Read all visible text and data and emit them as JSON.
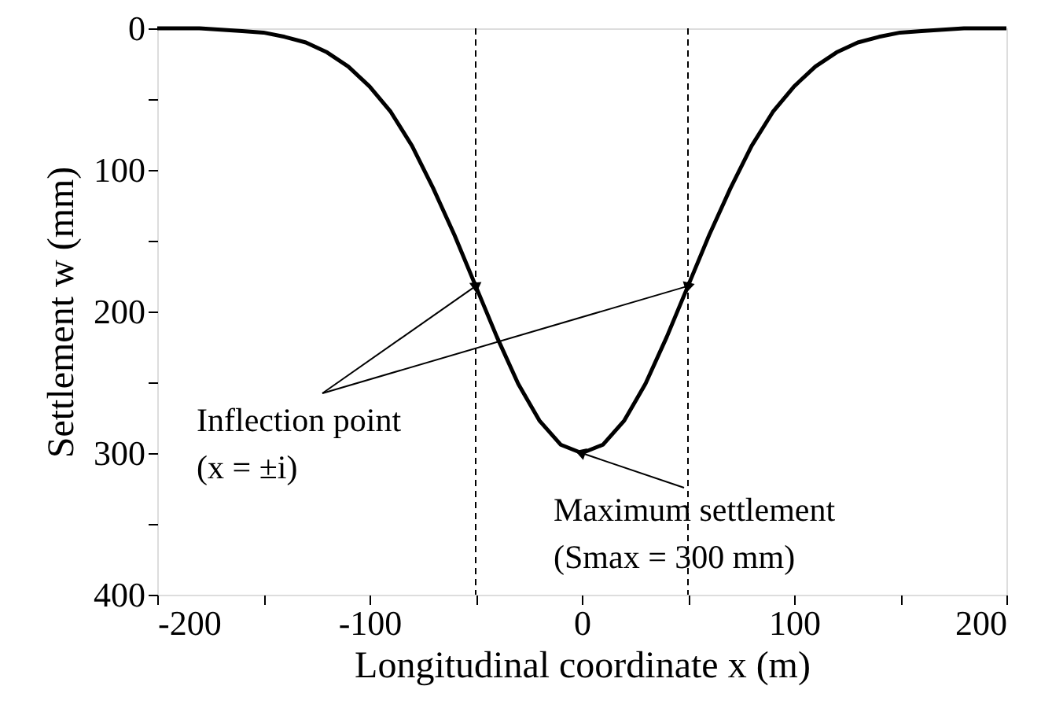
{
  "chart_data": {
    "type": "line",
    "xlabel": "Longitudinal coordinate x (m)",
    "ylabel": "Settlement w (mm)",
    "x": [
      -200,
      -190,
      -180,
      -170,
      -160,
      -150,
      -140,
      -130,
      -120,
      -110,
      -100,
      -90,
      -80,
      -70,
      -60,
      -50,
      -40,
      -30,
      -20,
      -10,
      0,
      10,
      20,
      30,
      40,
      50,
      60,
      70,
      80,
      90,
      100,
      110,
      120,
      130,
      140,
      150,
      160,
      170,
      180,
      190,
      200
    ],
    "series": [
      {
        "color": "#000000",
        "values": [
          0,
          0,
          0,
          1,
          2,
          3,
          6,
          10,
          17,
          27,
          41,
          59,
          83,
          113,
          146,
          182,
          218,
          251,
          277,
          294,
          300,
          294,
          277,
          251,
          218,
          182,
          146,
          113,
          83,
          59,
          41,
          27,
          17,
          10,
          6,
          3,
          2,
          1,
          0,
          0,
          0
        ]
      }
    ],
    "xlim": [
      -200,
      200
    ],
    "xticks": [
      -200,
      {
        "value": -150,
        "label": null
      },
      -100,
      {
        "value": -50,
        "label": null
      },
      0,
      {
        "value": 50,
        "label": null
      },
      100,
      {
        "value": 150,
        "label": null
      },
      200
    ],
    "ylim": [
      400,
      0
    ],
    "yticks": [
      0,
      {
        "value": 50,
        "label": null
      },
      100,
      {
        "value": 150,
        "label": null
      },
      200,
      {
        "value": 250,
        "label": null
      },
      300,
      {
        "value": 350,
        "label": null
      },
      400
    ],
    "ref_lines": [
      {
        "axis": "x",
        "value": -50,
        "label": null,
        "line_style": "dashed",
        "color": "#000000"
      },
      {
        "axis": "x",
        "value": 50,
        "label": null,
        "line_style": "dashed",
        "color": "#000000"
      }
    ],
    "annotations": [
      {
        "text": "Inflection point",
        "x": -50,
        "y": 182
      },
      "(x = ±i)",
      {
        "text": "Maximum settlement",
        "x": 0,
        "y": 300
      },
      "(Smax = 300 mm)"
    ],
    "grid": false,
    "marker": "none",
    "line_style": "solid"
  }
}
